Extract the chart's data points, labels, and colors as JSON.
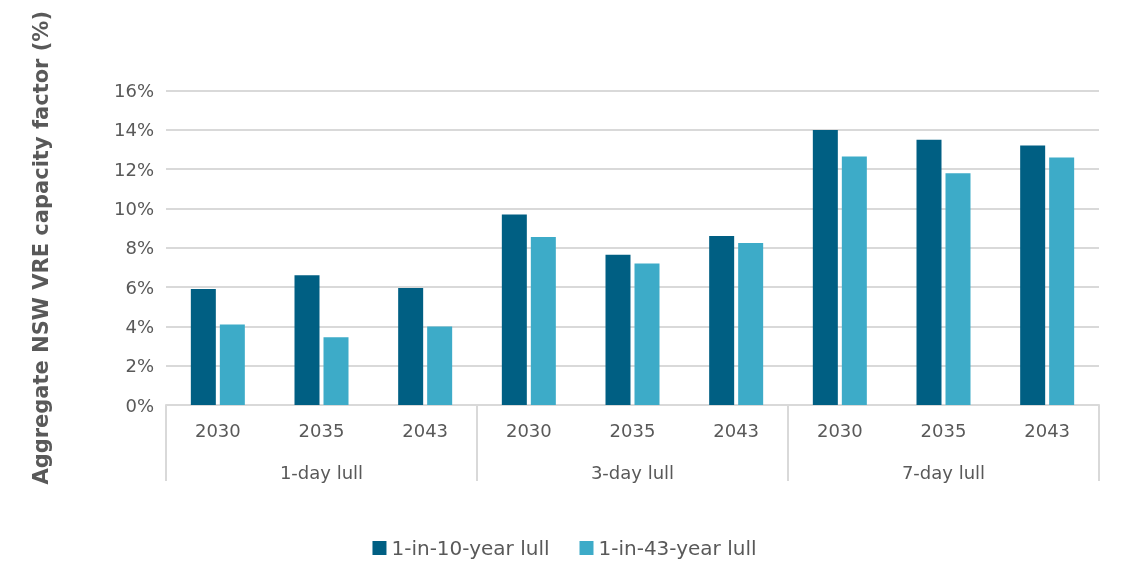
{
  "chart_data": {
    "type": "bar",
    "ylabel": "Aggregate NSW VRE capacity factor (%)",
    "categories": [
      "2030",
      "2035",
      "2043",
      "2030",
      "2035",
      "2043",
      "2030",
      "2035",
      "2043"
    ],
    "annotations": [
      "1-day lull",
      "3-day lull",
      "7-day lull"
    ],
    "series": [
      {
        "name": "1-in-10-year lull",
        "color": "#005f83",
        "values": [
          5.9,
          6.6,
          5.95,
          9.7,
          7.65,
          8.6,
          14.0,
          13.5,
          13.2
        ]
      },
      {
        "name": "1-in-43-year lull",
        "color": "#3dabc8",
        "values": [
          4.1,
          3.45,
          4.0,
          8.55,
          7.2,
          8.25,
          12.65,
          11.8,
          12.6
        ]
      }
    ],
    "ylim": [
      0,
      16
    ],
    "yticks": [
      {
        "value": 0,
        "label": "0%"
      },
      {
        "value": 2,
        "label": "2%"
      },
      {
        "value": 4,
        "label": "4%"
      },
      {
        "value": 6,
        "label": "6%"
      },
      {
        "value": 8,
        "label": "8%"
      },
      {
        "value": 10,
        "label": "10%"
      },
      {
        "value": 12,
        "label": "12%"
      },
      {
        "value": 14,
        "label": "14%"
      },
      {
        "value": 16,
        "label": "16%"
      }
    ],
    "grid": "y",
    "legend": "bottom"
  }
}
